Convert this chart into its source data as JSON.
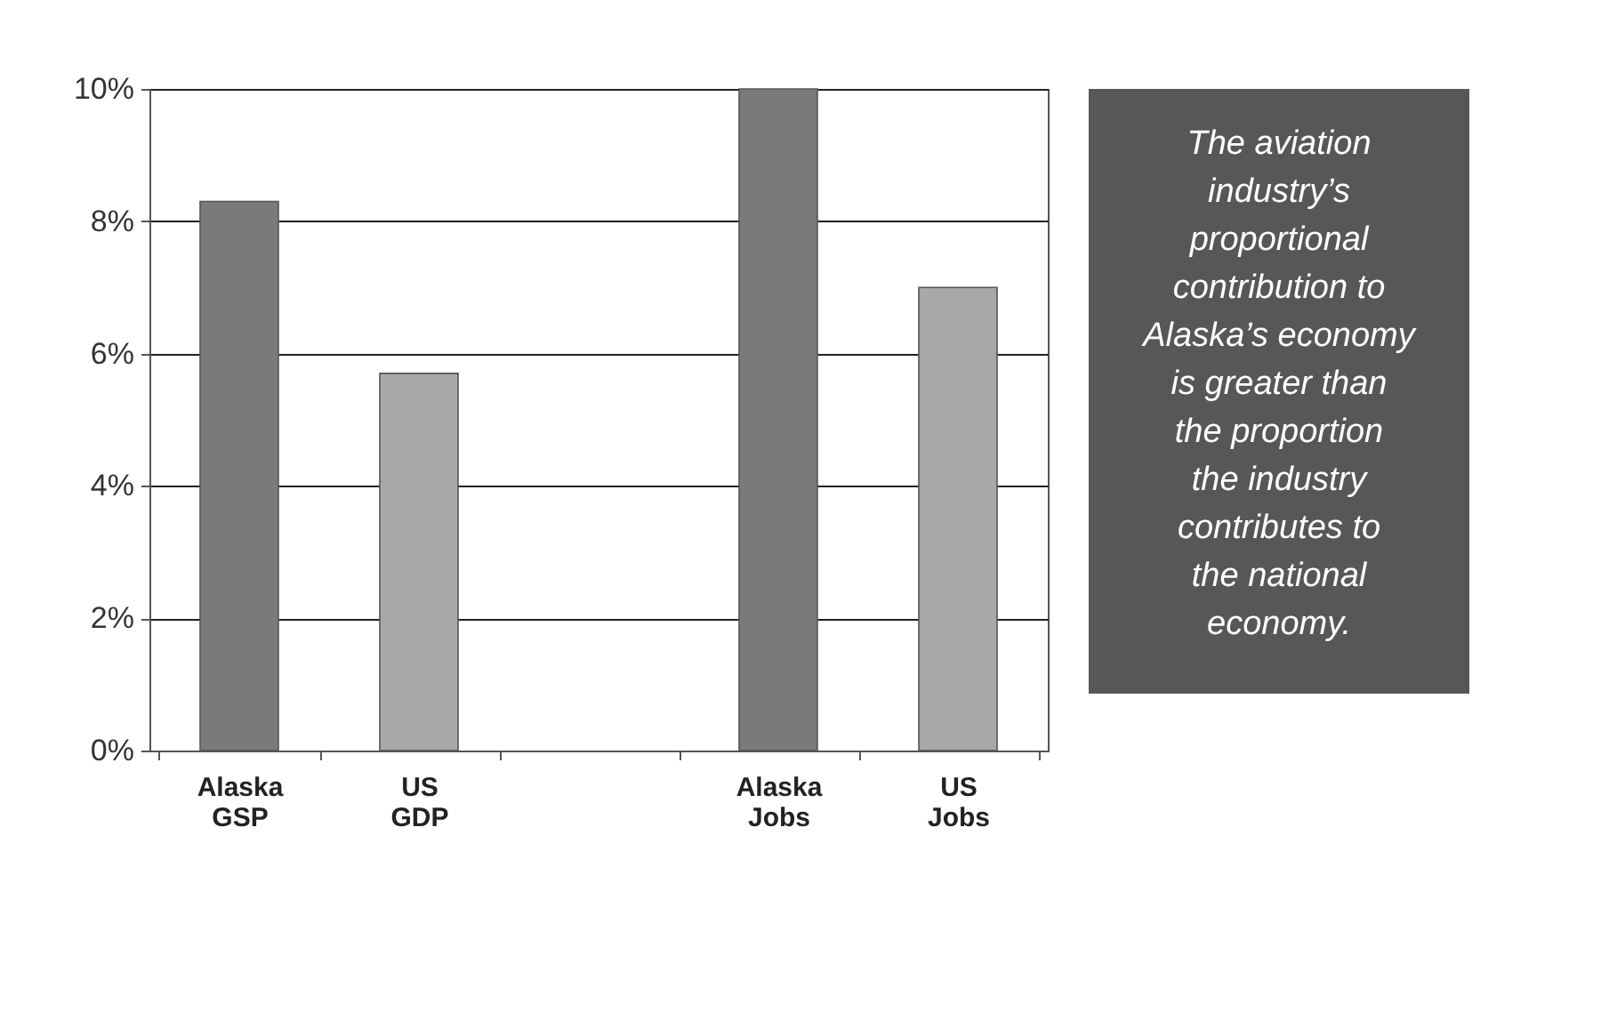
{
  "chart_data": {
    "type": "bar",
    "categories": [
      "Alaska GSP",
      "US GDP",
      null,
      "Alaska Jobs",
      "US Jobs"
    ],
    "values": [
      8.3,
      5.7,
      null,
      10.0,
      7.0
    ],
    "colors": [
      "#7a7a7a",
      "#a8a8a8",
      "#7a7a7a",
      "#7a7a7a",
      "#a8a8a8"
    ],
    "ylim": [
      0,
      10
    ],
    "yticks": [
      {
        "value": 0,
        "label": "0%"
      },
      {
        "value": 2,
        "label": "2%"
      },
      {
        "value": 4,
        "label": "4%"
      },
      {
        "value": 6,
        "label": "6%"
      },
      {
        "value": 8,
        "label": "8%"
      },
      {
        "value": 10,
        "label": "10%"
      }
    ],
    "grid": "y",
    "annotations": [
      "The aviation industry’s proportional contribution to Alaska’s economy is greater than the proportion the industry contributes to the national economy."
    ]
  }
}
